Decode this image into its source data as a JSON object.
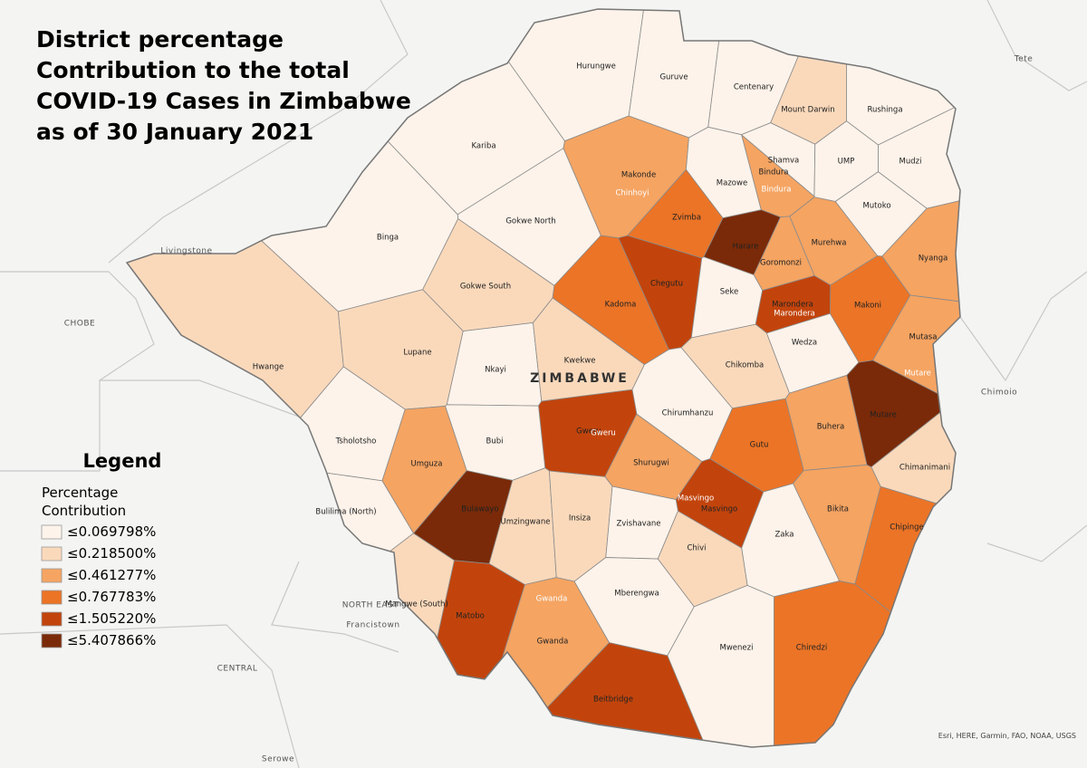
{
  "title": [
    "District percentage",
    "Contribution to the total",
    "COVID-19 Cases in Zimbabwe",
    "as of 30 January 2021"
  ],
  "country_label": "ZIMBABWE",
  "legend": {
    "title": "Legend",
    "subtitle": [
      "Percentage",
      "Contribution"
    ],
    "items": [
      {
        "label": "≤0.069798%",
        "color": "#fdf3ea"
      },
      {
        "label": "≤0.218500%",
        "color": "#fad9bb"
      },
      {
        "label": "≤0.461277%",
        "color": "#f5a462"
      },
      {
        "label": "≤0.767783%",
        "color": "#ec7426"
      },
      {
        "label": "≤1.505220%",
        "color": "#c2440c"
      },
      {
        "label": "≤5.407866%",
        "color": "#7a2a08"
      }
    ]
  },
  "districts": [
    {
      "name": "Hurungwe",
      "class": 0
    },
    {
      "name": "Guruve",
      "class": 0
    },
    {
      "name": "Centenary",
      "class": 0
    },
    {
      "name": "Mount Darwin",
      "class": 1
    },
    {
      "name": "Rushinga",
      "class": 0
    },
    {
      "name": "Kariba",
      "class": 0
    },
    {
      "name": "Makonde",
      "class": 2
    },
    {
      "name": "Shamva",
      "class": 0
    },
    {
      "name": "UMP",
      "class": 0
    },
    {
      "name": "Mudzi",
      "class": 0
    },
    {
      "name": "Mazowe",
      "class": 0
    },
    {
      "name": "Mutoko",
      "class": 0
    },
    {
      "name": "Bindura",
      "class": 2
    },
    {
      "name": "Zvimba",
      "class": 3
    },
    {
      "name": "Gokwe North",
      "class": 0
    },
    {
      "name": "Binga",
      "class": 0
    },
    {
      "name": "Harare",
      "class": 5
    },
    {
      "name": "Goromonzi",
      "class": 2
    },
    {
      "name": "Murehwa",
      "class": 2
    },
    {
      "name": "Nyanga",
      "class": 2
    },
    {
      "name": "Chegutu",
      "class": 4
    },
    {
      "name": "Gokwe South",
      "class": 1
    },
    {
      "name": "Seke",
      "class": 0
    },
    {
      "name": "Marondera",
      "class": 4
    },
    {
      "name": "Makoni",
      "class": 3
    },
    {
      "name": "Kadoma",
      "class": 3
    },
    {
      "name": "Hwange",
      "class": 1
    },
    {
      "name": "Lupane",
      "class": 1
    },
    {
      "name": "Nkayi",
      "class": 0
    },
    {
      "name": "Kwekwe",
      "class": 1
    },
    {
      "name": "Chikomba",
      "class": 1
    },
    {
      "name": "Wedza",
      "class": 0
    },
    {
      "name": "Mutasa",
      "class": 2
    },
    {
      "name": "Mutare",
      "class": 5
    },
    {
      "name": "Chirumhanzu",
      "class": 0
    },
    {
      "name": "Gweru",
      "class": 4
    },
    {
      "name": "Buhera",
      "class": 2
    },
    {
      "name": "Gutu",
      "class": 3
    },
    {
      "name": "Tsholotsho",
      "class": 0
    },
    {
      "name": "Bubi",
      "class": 0
    },
    {
      "name": "Umguza",
      "class": 2
    },
    {
      "name": "Shurugwi",
      "class": 2
    },
    {
      "name": "Chimanimani",
      "class": 1
    },
    {
      "name": "Masvingo",
      "class": 4
    },
    {
      "name": "Bikita",
      "class": 2
    },
    {
      "name": "Zaka",
      "class": 0
    },
    {
      "name": "Chipinge",
      "class": 3
    },
    {
      "name": "Bulawayo",
      "class": 5
    },
    {
      "name": "Umzingwane",
      "class": 1
    },
    {
      "name": "Insiza",
      "class": 1
    },
    {
      "name": "Zvishavane",
      "class": 0
    },
    {
      "name": "Chivi",
      "class": 1
    },
    {
      "name": "Bulilima (North)",
      "class": 0
    },
    {
      "name": "Mberengwa",
      "class": 0
    },
    {
      "name": "Mangwe (South)",
      "class": 1
    },
    {
      "name": "Matobo",
      "class": 4
    },
    {
      "name": "Gwanda",
      "class": 2
    },
    {
      "name": "Mwenezi",
      "class": 0
    },
    {
      "name": "Chiredzi",
      "class": 3
    },
    {
      "name": "Beitbridge",
      "class": 4
    }
  ],
  "urban_labels": [
    "Chinhoyi",
    "Bindura",
    "Marondera",
    "Mutare",
    "Gweru",
    "Masvingo",
    "Gwanda"
  ],
  "places": [
    "CHOBE",
    "NORTH EAST",
    "CENTRAL",
    "Livingstone",
    "Francistown",
    "Serowe",
    "Tete",
    "Chimoio"
  ],
  "attribution": "Esri, HERE, Garmin, FAO, NOAA, USGS"
}
